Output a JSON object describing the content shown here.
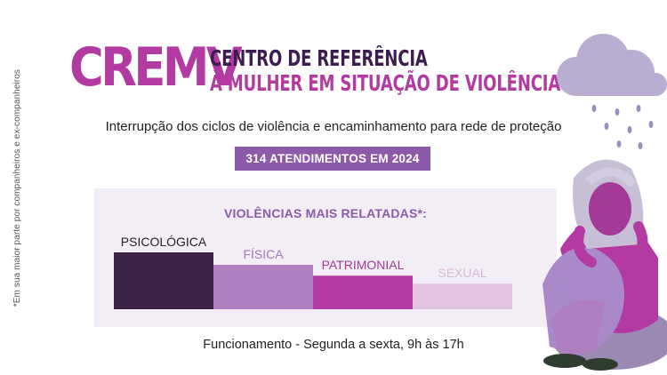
{
  "side_note": "*Em sua maior parte por companheiros e ex-companheiros",
  "logo_text": "CREMV",
  "center_name": {
    "line1": "CENTRO DE REFERÊNCIA",
    "line2": "À MULHER EM SITUAÇÃO DE VIOLÊNCIA"
  },
  "subtitle": "Interrupção dos ciclos de violência e encaminhamento para rede de proteção",
  "badge": "314 ATENDIMENTOS EM 2024",
  "footer": "Funcionamento - Segunda a sexta, 9h às 17h",
  "illustration": "woman-with-rain-cloud",
  "chart_data": {
    "type": "bar",
    "title": "VIOLÊNCIAS MAIS RELATADAS*:",
    "categories": [
      "PSICOLÓGICA",
      "FÍSICA",
      "PATRIMONIAL",
      "SEXUAL"
    ],
    "values": [
      100,
      78,
      59,
      45
    ],
    "colors": [
      "#3b2145",
      "#b07fc0",
      "#b23aa0",
      "#e3c4e0"
    ],
    "label_colors": [
      "#222222",
      "#a878b8",
      "#a33a97",
      "#d8b8d8"
    ],
    "ylim": [
      0,
      100
    ],
    "grid": false,
    "axes_visible": false
  }
}
